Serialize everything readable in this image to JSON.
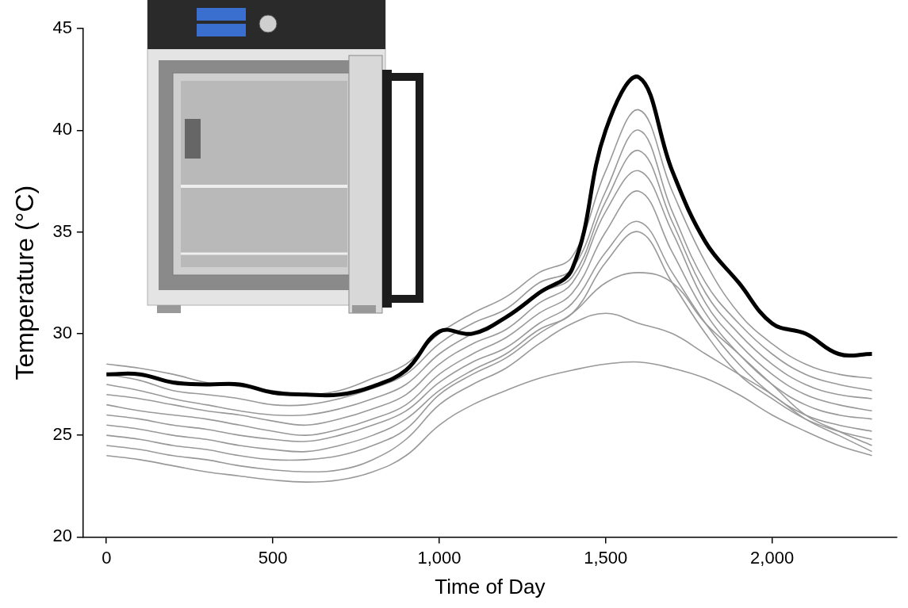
{
  "chart_data": {
    "type": "line",
    "x_label": "Time of Day",
    "y_label": "Temperature (°C)",
    "xlim": [
      -70,
      2375
    ],
    "xticks": [
      0,
      500,
      1000,
      1500,
      2000
    ],
    "ylim": [
      20,
      45
    ],
    "yticks": [
      20,
      25,
      30,
      35,
      40,
      45
    ],
    "grid": false,
    "x": [
      0,
      100,
      200,
      300,
      400,
      500,
      600,
      700,
      800,
      900,
      1000,
      1100,
      1200,
      1300,
      1400,
      1500,
      1600,
      1700,
      1800,
      1900,
      2000,
      2100,
      2200,
      2300
    ],
    "series": [
      {
        "color": "#000000",
        "values": [
          28,
          28,
          27.6,
          27.5,
          27.5,
          27.1,
          27,
          27,
          27.4,
          28.2,
          30.1,
          30,
          30.8,
          32,
          33.2,
          40,
          42.6,
          38,
          34.5,
          32.5,
          30.5,
          30,
          29,
          29
        ]
      },
      {
        "color": "#999999",
        "values": [
          28.5,
          28.3,
          28,
          27.6,
          27.4,
          27.2,
          27,
          27.2,
          27.8,
          28.5,
          30,
          31,
          31.8,
          33,
          33.8,
          38,
          41,
          37,
          33.5,
          31,
          29.5,
          28.5,
          28,
          27.8
        ]
      },
      {
        "color": "#999999",
        "values": [
          28,
          27.7,
          27.2,
          27,
          26.8,
          26.5,
          26.5,
          26.8,
          27.3,
          28,
          29.5,
          30.5,
          31.2,
          32.5,
          33.2,
          37,
          40,
          36,
          32.5,
          30.5,
          29,
          28,
          27.5,
          27.2
        ]
      },
      {
        "color": "#999999",
        "values": [
          27.5,
          27.2,
          26.8,
          26.5,
          26.2,
          26,
          26,
          26.3,
          26.8,
          27.5,
          29,
          30,
          30.8,
          32,
          32.8,
          36.5,
          39,
          35.5,
          32,
          30,
          28.5,
          27.5,
          27,
          26.8
        ]
      },
      {
        "color": "#999999",
        "values": [
          27,
          26.8,
          26.5,
          26.2,
          26,
          25.7,
          25.5,
          25.8,
          26.3,
          27,
          28.5,
          29.5,
          30.2,
          31.5,
          32.5,
          36,
          38,
          35,
          31.5,
          29.5,
          28,
          27,
          26.5,
          26.2
        ]
      },
      {
        "color": "#999999",
        "values": [
          26.5,
          26.2,
          26,
          25.8,
          25.5,
          25.2,
          25,
          25.3,
          25.8,
          26.5,
          28,
          29,
          29.8,
          31,
          32,
          35,
          37,
          34,
          31,
          29,
          27.5,
          26.5,
          26,
          25.8
        ]
      },
      {
        "color": "#999999",
        "values": [
          26,
          25.8,
          25.5,
          25.3,
          25,
          24.8,
          24.7,
          25,
          25.5,
          26.2,
          27.6,
          28.6,
          29.3,
          30.5,
          31.5,
          34,
          35.5,
          33,
          30.5,
          28.5,
          27,
          26,
          25.5,
          25.2
        ]
      },
      {
        "color": "#999999",
        "values": [
          25.5,
          25.3,
          25,
          24.8,
          24.5,
          24.3,
          24.2,
          24.5,
          25,
          25.8,
          27.2,
          28.2,
          29,
          30.2,
          31,
          33.5,
          35,
          32.5,
          30,
          28,
          26.8,
          25.8,
          25.2,
          24.8
        ]
      },
      {
        "color": "#999999",
        "values": [
          25,
          24.8,
          24.5,
          24.3,
          24,
          23.8,
          23.8,
          24,
          24.5,
          25.3,
          27,
          28,
          28.8,
          30,
          31,
          32.5,
          33,
          32.5,
          30.5,
          29,
          27.5,
          26,
          25.2,
          24.5
        ]
      },
      {
        "color": "#999999",
        "values": [
          24.5,
          24.3,
          24,
          23.8,
          23.5,
          23.3,
          23.2,
          23.3,
          23.8,
          24.8,
          26.5,
          27.5,
          28.3,
          29.5,
          30.5,
          31,
          30.5,
          30,
          29,
          28,
          27,
          25.8,
          25,
          24.2
        ]
      },
      {
        "color": "#999999",
        "values": [
          24,
          23.8,
          23.5,
          23.2,
          23,
          22.8,
          22.7,
          22.8,
          23.2,
          24,
          25.5,
          26.5,
          27.2,
          27.8,
          28.2,
          28.5,
          28.6,
          28.3,
          27.8,
          27,
          26,
          25.2,
          24.5,
          24
        ]
      }
    ]
  }
}
